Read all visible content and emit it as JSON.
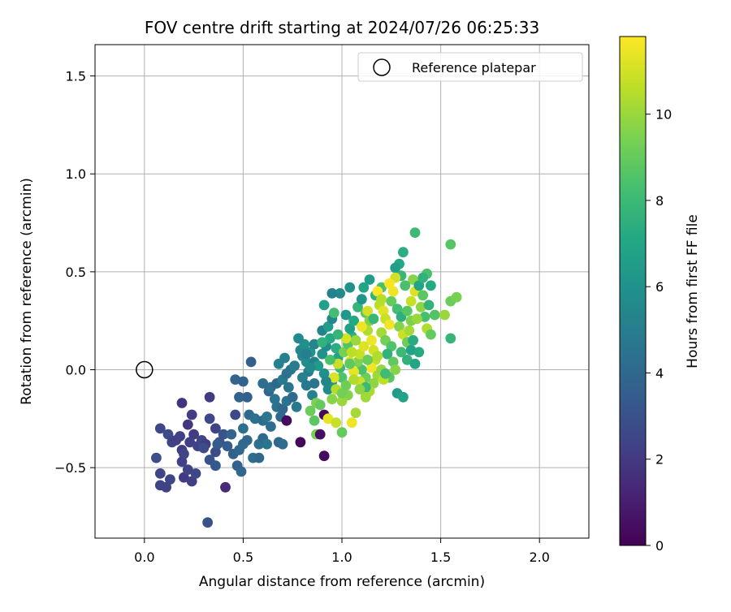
{
  "chart_data": {
    "type": "scatter",
    "title": "FOV centre drift starting at 2024/07/26 06:25:33",
    "xlabel": "Angular distance from reference (arcmin)",
    "ylabel": "Rotation from reference (arcmin)",
    "xlim": [
      -0.25,
      2.25
    ],
    "ylim": [
      -0.86,
      1.66
    ],
    "xticks": [
      0.0,
      0.5,
      1.0,
      1.5,
      2.0
    ],
    "xtick_labels": [
      "0.0",
      "0.5",
      "1.0",
      "1.5",
      "2.0"
    ],
    "yticks": [
      -0.5,
      0.0,
      0.5,
      1.0,
      1.5
    ],
    "ytick_labels": [
      "−0.5",
      "0.0",
      "0.5",
      "1.0",
      "1.5"
    ],
    "grid": true,
    "legend": {
      "position": "top-right",
      "entries": [
        "Reference platepar"
      ]
    },
    "reference_point": {
      "x": 0.0,
      "y": 0.0,
      "marker": "open-circle"
    },
    "colorbar": {
      "label": "Hours from first FF file",
      "colormap": "viridis",
      "range": [
        0,
        11.8
      ],
      "ticks": [
        0,
        2,
        4,
        6,
        8,
        10
      ],
      "tick_labels": [
        "0",
        "2",
        "4",
        "6",
        "8",
        "10"
      ]
    },
    "points": [
      [
        0.32,
        -0.78,
        3.0
      ],
      [
        0.06,
        -0.45,
        2.8
      ],
      [
        0.08,
        -0.53,
        2.5
      ],
      [
        0.08,
        -0.59,
        2.4
      ],
      [
        0.11,
        -0.6,
        2.3
      ],
      [
        0.13,
        -0.56,
        2.5
      ],
      [
        0.08,
        -0.3,
        2.6
      ],
      [
        0.12,
        -0.33,
        2.7
      ],
      [
        0.14,
        -0.37,
        2.4
      ],
      [
        0.16,
        -0.36,
        2.2
      ],
      [
        0.18,
        -0.34,
        2.3
      ],
      [
        0.19,
        -0.41,
        2.1
      ],
      [
        0.19,
        -0.47,
        2.3
      ],
      [
        0.2,
        -0.55,
        2.0
      ],
      [
        0.22,
        -0.51,
        2.4
      ],
      [
        0.24,
        -0.57,
        2.2
      ],
      [
        0.26,
        -0.53,
        2.6
      ],
      [
        0.22,
        -0.28,
        1.9
      ],
      [
        0.25,
        -0.33,
        2.0
      ],
      [
        0.27,
        -0.39,
        2.3
      ],
      [
        0.29,
        -0.36,
        2.5
      ],
      [
        0.31,
        -0.38,
        2.1
      ],
      [
        0.33,
        -0.46,
        3.0
      ],
      [
        0.36,
        -0.42,
        2.7
      ],
      [
        0.38,
        -0.37,
        2.9
      ],
      [
        0.4,
        -0.33,
        3.1
      ],
      [
        0.36,
        -0.3,
        2.4
      ],
      [
        0.37,
        -0.38,
        3.4
      ],
      [
        0.33,
        -0.25,
        2.6
      ],
      [
        0.36,
        -0.49,
        3.3
      ],
      [
        0.41,
        -0.6,
        1.4
      ],
      [
        0.19,
        -0.17,
        1.8
      ],
      [
        0.23,
        -0.37,
        2.2
      ],
      [
        0.2,
        -0.43,
        2.5
      ],
      [
        0.24,
        -0.23,
        2.1
      ],
      [
        0.33,
        -0.14,
        2.0
      ],
      [
        0.3,
        -0.4,
        2.8
      ],
      [
        0.42,
        -0.39,
        3.5
      ],
      [
        0.44,
        -0.33,
        3.8
      ],
      [
        0.46,
        -0.23,
        2.6
      ],
      [
        0.45,
        -0.43,
        3.6
      ],
      [
        0.47,
        -0.49,
        3.7
      ],
      [
        0.49,
        -0.52,
        3.9
      ],
      [
        0.48,
        -0.41,
        4.0
      ],
      [
        0.5,
        -0.38,
        4.1
      ],
      [
        0.52,
        -0.36,
        4.0
      ],
      [
        0.5,
        -0.3,
        4.3
      ],
      [
        0.48,
        -0.14,
        3.7
      ],
      [
        0.52,
        -0.14,
        3.6
      ],
      [
        0.5,
        -0.06,
        3.7
      ],
      [
        0.53,
        -0.23,
        4.1
      ],
      [
        0.56,
        -0.25,
        4.3
      ],
      [
        0.55,
        -0.45,
        4.2
      ],
      [
        0.58,
        -0.45,
        4.0
      ],
      [
        0.58,
        -0.38,
        4.4
      ],
      [
        0.6,
        -0.35,
        4.1
      ],
      [
        0.62,
        -0.38,
        4.6
      ],
      [
        0.6,
        -0.26,
        4.2
      ],
      [
        0.62,
        -0.24,
        4.7
      ],
      [
        0.64,
        -0.29,
        4.2
      ],
      [
        0.6,
        -0.07,
        4.2
      ],
      [
        0.63,
        -0.11,
        3.8
      ],
      [
        0.66,
        -0.15,
        4.5
      ],
      [
        0.67,
        -0.19,
        4.4
      ],
      [
        0.69,
        -0.24,
        4.0
      ],
      [
        0.7,
        -0.2,
        3.9
      ],
      [
        0.72,
        -0.16,
        4.5
      ],
      [
        0.68,
        -0.37,
        3.9
      ],
      [
        0.7,
        -0.38,
        4.2
      ],
      [
        0.64,
        -0.09,
        4.3
      ],
      [
        0.67,
        -0.07,
        4.0
      ],
      [
        0.7,
        -0.05,
        4.8
      ],
      [
        0.72,
        -0.02,
        4.3
      ],
      [
        0.74,
        0.0,
        4.6
      ],
      [
        0.76,
        0.02,
        4.9
      ],
      [
        0.68,
        0.03,
        5.2
      ],
      [
        0.71,
        0.06,
        5.1
      ],
      [
        0.73,
        -0.09,
        4.5
      ],
      [
        0.75,
        -0.14,
        4.1
      ],
      [
        0.77,
        -0.19,
        4.7
      ],
      [
        0.72,
        -0.26,
        0.3
      ],
      [
        0.79,
        -0.37,
        0.2
      ],
      [
        0.54,
        0.04,
        3.6
      ],
      [
        0.46,
        -0.05,
        3.8
      ],
      [
        0.8,
        0.07,
        5.5
      ],
      [
        0.82,
        0.04,
        5.8
      ],
      [
        0.79,
        0.1,
        5.4
      ],
      [
        0.81,
        0.13,
        5.9
      ],
      [
        0.78,
        0.16,
        5.6
      ],
      [
        0.84,
        0.09,
        6.0
      ],
      [
        0.86,
        0.13,
        5.3
      ],
      [
        0.86,
        0.04,
        5.0
      ],
      [
        0.83,
        -0.01,
        4.9
      ],
      [
        0.8,
        -0.04,
        5.1
      ],
      [
        0.82,
        -0.08,
        4.7
      ],
      [
        0.85,
        -0.13,
        5.2
      ],
      [
        0.87,
        -0.17,
        9.5
      ],
      [
        0.84,
        -0.21,
        9.1
      ],
      [
        0.86,
        -0.26,
        8.8
      ],
      [
        0.89,
        -0.18,
        9.0
      ],
      [
        0.87,
        -0.33,
        9.4
      ],
      [
        0.89,
        -0.33,
        0.5
      ],
      [
        0.91,
        -0.23,
        0.3
      ],
      [
        0.93,
        -0.25,
        11.4
      ],
      [
        0.91,
        -0.44,
        0.4
      ],
      [
        0.97,
        -0.27,
        10.8
      ],
      [
        1.0,
        -0.32,
        9.0
      ],
      [
        1.05,
        -0.27,
        11.5
      ],
      [
        1.07,
        -0.22,
        10.2
      ],
      [
        0.93,
        -0.1,
        5.6
      ],
      [
        0.95,
        -0.06,
        6.2
      ],
      [
        0.91,
        -0.02,
        5.9
      ],
      [
        0.88,
        0.02,
        6.4
      ],
      [
        0.9,
        0.08,
        6.0
      ],
      [
        0.92,
        0.12,
        5.7
      ],
      [
        0.94,
        0.16,
        7.2
      ],
      [
        0.9,
        0.2,
        5.2
      ],
      [
        0.93,
        0.22,
        6.5
      ],
      [
        0.95,
        0.26,
        5.5
      ],
      [
        0.91,
        0.33,
        6.7
      ],
      [
        0.96,
        0.29,
        8.2
      ],
      [
        0.97,
        0.11,
        7.4
      ],
      [
        0.98,
        0.06,
        7.0
      ],
      [
        0.99,
        0.01,
        8.0
      ],
      [
        1.0,
        -0.04,
        8.5
      ],
      [
        1.02,
        -0.08,
        9.2
      ],
      [
        1.03,
        -0.13,
        9.6
      ],
      [
        1.0,
        -0.16,
        10.0
      ],
      [
        0.97,
        -0.1,
        10.5
      ],
      [
        0.96,
        -0.04,
        11.2
      ],
      [
        0.98,
        0.03,
        10.8
      ],
      [
        1.01,
        0.09,
        9.4
      ],
      [
        1.03,
        0.13,
        8.6
      ],
      [
        1.05,
        0.17,
        7.5
      ],
      [
        1.04,
        0.21,
        6.7
      ],
      [
        1.06,
        0.25,
        7.2
      ],
      [
        1.02,
        0.28,
        6.3
      ],
      [
        1.08,
        0.32,
        7.8
      ],
      [
        1.1,
        0.36,
        6.1
      ],
      [
        1.12,
        0.29,
        8.8
      ],
      [
        1.14,
        0.25,
        9.6
      ],
      [
        1.13,
        0.2,
        10.4
      ],
      [
        1.15,
        0.15,
        11.5
      ],
      [
        1.16,
        0.1,
        11.0
      ],
      [
        1.17,
        0.05,
        10.7
      ],
      [
        1.15,
        0.01,
        11.6
      ],
      [
        1.18,
        -0.03,
        10.1
      ],
      [
        1.16,
        -0.07,
        9.8
      ],
      [
        1.14,
        -0.11,
        10.3
      ],
      [
        1.12,
        -0.04,
        9.2
      ],
      [
        1.1,
        0.0,
        8.4
      ],
      [
        1.08,
        0.04,
        9.5
      ],
      [
        1.09,
        0.08,
        10.8
      ],
      [
        1.11,
        0.12,
        11.2
      ],
      [
        1.07,
        0.15,
        10.0
      ],
      [
        1.05,
        0.09,
        10.6
      ],
      [
        1.04,
        0.04,
        11.0
      ],
      [
        1.06,
        -0.01,
        11.4
      ],
      [
        1.09,
        -0.06,
        10.9
      ],
      [
        1.12,
        -0.09,
        8.0
      ],
      [
        1.04,
        0.42,
        6.0
      ],
      [
        0.99,
        0.39,
        5.6
      ],
      [
        0.95,
        0.39,
        5.2
      ],
      [
        1.11,
        0.42,
        7.0
      ],
      [
        1.14,
        0.46,
        6.5
      ],
      [
        1.17,
        0.38,
        7.6
      ],
      [
        1.2,
        0.42,
        8.4
      ],
      [
        1.19,
        0.33,
        10.6
      ],
      [
        1.21,
        0.3,
        11.3
      ],
      [
        1.22,
        0.26,
        10.8
      ],
      [
        1.24,
        0.23,
        11.6
      ],
      [
        1.2,
        0.19,
        10.2
      ],
      [
        1.22,
        0.15,
        9.3
      ],
      [
        1.25,
        0.12,
        8.5
      ],
      [
        1.23,
        0.08,
        7.6
      ],
      [
        1.26,
        0.04,
        8.9
      ],
      [
        1.27,
        0.0,
        9.7
      ],
      [
        1.24,
        -0.04,
        8.7
      ],
      [
        1.28,
        -0.12,
        6.5
      ],
      [
        1.31,
        -0.14,
        6.8
      ],
      [
        1.18,
        0.4,
        11.8
      ],
      [
        1.2,
        0.36,
        10.5
      ],
      [
        1.25,
        0.35,
        9.0
      ],
      [
        1.28,
        0.31,
        8.2
      ],
      [
        1.3,
        0.27,
        7.5
      ],
      [
        1.29,
        0.22,
        9.6
      ],
      [
        1.31,
        0.18,
        10.9
      ],
      [
        1.33,
        0.14,
        9.2
      ],
      [
        1.3,
        0.09,
        8.0
      ],
      [
        1.33,
        0.05,
        7.6
      ],
      [
        1.35,
        0.1,
        6.8
      ],
      [
        1.36,
        0.15,
        7.3
      ],
      [
        1.34,
        0.2,
        10.2
      ],
      [
        1.35,
        0.25,
        9.5
      ],
      [
        1.33,
        0.3,
        8.7
      ],
      [
        1.35,
        0.35,
        10.8
      ],
      [
        1.37,
        0.4,
        11.2
      ],
      [
        1.36,
        0.46,
        9.7
      ],
      [
        1.32,
        0.43,
        8.4
      ],
      [
        1.3,
        0.48,
        7.9
      ],
      [
        1.29,
        0.54,
        7.1
      ],
      [
        1.27,
        0.52,
        6.6
      ],
      [
        1.31,
        0.6,
        7.4
      ],
      [
        1.37,
        0.7,
        8.0
      ],
      [
        1.39,
        0.43,
        7.0
      ],
      [
        1.41,
        0.38,
        8.8
      ],
      [
        1.4,
        0.32,
        9.8
      ],
      [
        1.42,
        0.27,
        8.3
      ],
      [
        1.44,
        0.33,
        7.7
      ],
      [
        1.43,
        0.21,
        10.4
      ],
      [
        1.45,
        0.18,
        9.0
      ],
      [
        1.47,
        0.28,
        8.6
      ],
      [
        1.43,
        0.49,
        8.4
      ],
      [
        1.45,
        0.43,
        7.2
      ],
      [
        1.41,
        0.47,
        7.6
      ],
      [
        1.37,
        0.03,
        7.0
      ],
      [
        1.39,
        0.09,
        7.2
      ],
      [
        1.38,
        0.26,
        10.0
      ],
      [
        1.52,
        0.28,
        10.0
      ],
      [
        1.55,
        0.35,
        9.1
      ],
      [
        1.58,
        0.37,
        9.4
      ],
      [
        1.55,
        0.64,
        8.7
      ],
      [
        1.55,
        0.16,
        7.8
      ],
      [
        1.26,
        0.4,
        11.5
      ],
      [
        1.27,
        0.47,
        11.0
      ],
      [
        1.24,
        0.44,
        11.7
      ],
      [
        1.13,
        0.3,
        11.0
      ],
      [
        1.1,
        0.22,
        11.5
      ],
      [
        1.02,
        0.16,
        11.1
      ],
      [
        1.16,
        0.26,
        7.9
      ],
      [
        1.18,
        0.07,
        10.4
      ],
      [
        1.2,
        0.0,
        9.9
      ],
      [
        1.21,
        -0.05,
        10.6
      ],
      [
        1.22,
        -0.02,
        8.1
      ],
      [
        1.12,
        -0.14,
        10.1
      ],
      [
        1.09,
        -0.1,
        9.8
      ],
      [
        1.06,
        -0.05,
        10.4
      ],
      [
        1.0,
        -0.12,
        9.3
      ],
      [
        0.95,
        -0.15,
        9.7
      ],
      [
        0.92,
        -0.06,
        5.4
      ],
      [
        0.86,
        -0.07,
        4.6
      ],
      [
        0.84,
        0.01,
        5.7
      ],
      [
        0.82,
        0.08,
        5.0
      ],
      [
        0.9,
        0.14,
        7.6
      ],
      [
        0.94,
        0.05,
        8.4
      ],
      [
        0.98,
        0.18,
        7.8
      ],
      [
        1.04,
        0.03,
        8.9
      ],
      [
        1.13,
        0.05,
        9.1
      ]
    ]
  }
}
